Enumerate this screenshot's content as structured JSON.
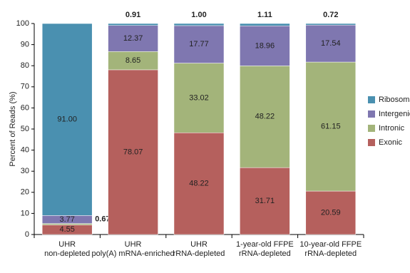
{
  "chart_data": {
    "type": "stacked-bar",
    "y_label": "Percent of Reads (%)",
    "categories": [
      "UHR\nnon-depleted",
      "UHR\npoly(A) mRNA-enriched",
      "UHR\nrRNA-depleted",
      "1-year-old FFPE\nrRNA-depleted",
      "10-year-old FFPE\nrRNA-depleted"
    ],
    "series": [
      {
        "name": "Exonic",
        "color": "#b5605d",
        "values": [
          4.55,
          78.07,
          48.22,
          31.71,
          20.59
        ],
        "value_labels": [
          "4.55",
          "78.07",
          "48.22",
          "31.71",
          "20.59"
        ]
      },
      {
        "name": "Intronic",
        "color": "#a3b47a",
        "values": [
          0.67,
          8.65,
          33.02,
          48.22,
          61.15
        ],
        "value_labels": [
          "0.67",
          "8.65",
          "33.02",
          "48.22",
          "61.15"
        ]
      },
      {
        "name": "Intergenic",
        "color": "#7f77b0",
        "values": [
          3.77,
          12.37,
          17.77,
          18.96,
          17.54
        ],
        "value_labels": [
          "3.77",
          "12.37",
          "17.77",
          "18.96",
          "17.54"
        ]
      },
      {
        "name": "Ribosomal",
        "color": "#4a90b0",
        "values": [
          91.0,
          0.91,
          1.0,
          1.11,
          0.72
        ],
        "value_labels": [
          "91.00",
          "0.91",
          "1.00",
          "1.11",
          "0.72"
        ]
      }
    ],
    "ylim": [
      0,
      100
    ],
    "yticks": [
      0,
      10,
      20,
      30,
      40,
      50,
      60,
      70,
      80,
      90,
      100
    ],
    "legend": "right"
  }
}
